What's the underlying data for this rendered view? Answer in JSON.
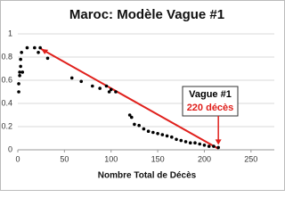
{
  "chart_data": {
    "type": "scatter",
    "title": "Maroc: Modèle Vague #1",
    "x_label": "Nombre Total de Décès",
    "x": [
      1,
      1,
      2,
      2,
      3,
      3,
      4,
      5,
      10,
      18,
      22,
      24,
      32,
      58,
      68,
      80,
      88,
      95,
      98,
      100,
      105,
      120,
      122,
      125,
      130,
      135,
      140,
      145,
      150,
      155,
      160,
      165,
      170,
      175,
      180,
      185,
      190,
      195,
      200,
      205,
      210,
      215
    ],
    "values": [
      0.5,
      0.57,
      0.64,
      0.67,
      0.72,
      0.78,
      0.84,
      0.67,
      0.88,
      0.88,
      0.84,
      0.88,
      0.79,
      0.62,
      0.59,
      0.55,
      0.53,
      0.55,
      0.5,
      0.52,
      0.5,
      0.3,
      0.28,
      0.22,
      0.21,
      0.18,
      0.16,
      0.15,
      0.14,
      0.13,
      0.12,
      0.11,
      0.09,
      0.08,
      0.07,
      0.06,
      0.06,
      0.05,
      0.04,
      0.03,
      0.03,
      0.02
    ],
    "color": "#000000",
    "trend_line": {
      "x": [
        25,
        215
      ],
      "values": [
        0.87,
        0.01
      ],
      "color": "#e0201c"
    },
    "annotation": {
      "lines": [
        "Vague #1",
        "220 décès"
      ],
      "colors": [
        "#000000",
        "#e0201c"
      ]
    },
    "xlim": [
      0,
      275
    ],
    "xticks": [
      0,
      50,
      100,
      150,
      200,
      250
    ],
    "ylim": [
      0,
      1
    ],
    "yticks": [
      0,
      0.2,
      0.4,
      0.6,
      0.8,
      1
    ],
    "grid": true
  }
}
